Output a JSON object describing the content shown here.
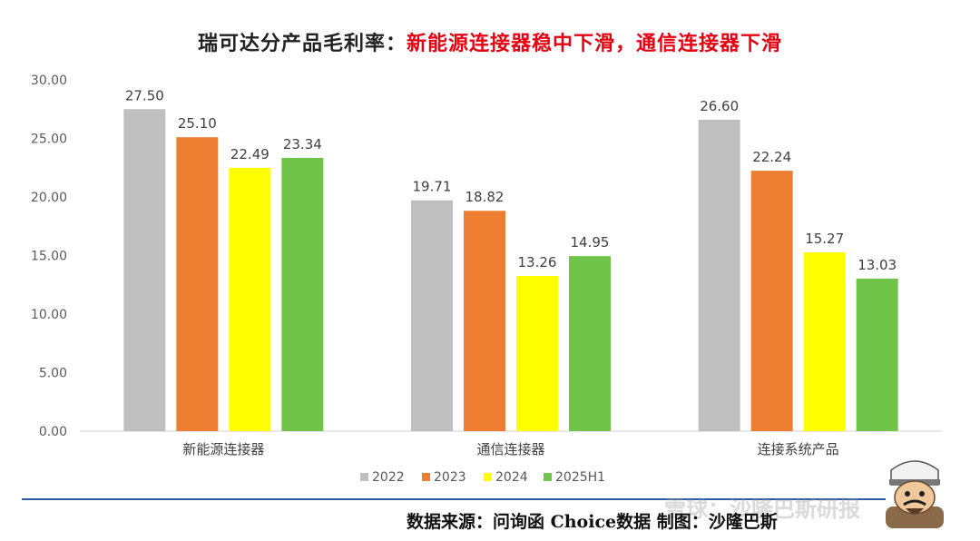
{
  "title": {
    "main": "瑞可达分产品毛利率：",
    "highlight": "新能源连接器稳中下滑，通信连接器下滑"
  },
  "source": "数据来源：问询函 Choice数据 制图：沙隆巴斯",
  "watermark": "雪球：沙隆巴斯研报",
  "colors": {
    "title_highlight": "#e60012",
    "separator": "#2e5aa8"
  },
  "chart_data": {
    "type": "bar",
    "title": "瑞可达分产品毛利率：新能源连接器稳中下滑，通信连接器下滑",
    "categories": [
      "新能源连接器",
      "通信连接器",
      "连接系统产品"
    ],
    "series": [
      {
        "name": "2022",
        "color": "#bfbfbf",
        "values": [
          27.5,
          19.71,
          26.6
        ],
        "labels": [
          "27.50",
          "19.71",
          "26.60"
        ]
      },
      {
        "name": "2023",
        "color": "#ed7d31",
        "values": [
          25.1,
          18.82,
          22.24
        ],
        "labels": [
          "25.10",
          "18.82",
          "22.24"
        ]
      },
      {
        "name": "2024",
        "color": "#ffff00",
        "values": [
          22.49,
          13.26,
          15.27
        ],
        "labels": [
          "22.49",
          "13.26",
          "15.27"
        ]
      },
      {
        "name": "2025H1",
        "color": "#70c44a",
        "values": [
          23.34,
          14.95,
          13.03
        ],
        "labels": [
          "23.34",
          "14.95",
          "13.03"
        ]
      }
    ],
    "yticks": [
      "0.00",
      "5.00",
      "10.00",
      "15.00",
      "20.00",
      "25.00",
      "30.00"
    ],
    "ylim": [
      0,
      30
    ],
    "grid": false,
    "legend": "bottom"
  }
}
